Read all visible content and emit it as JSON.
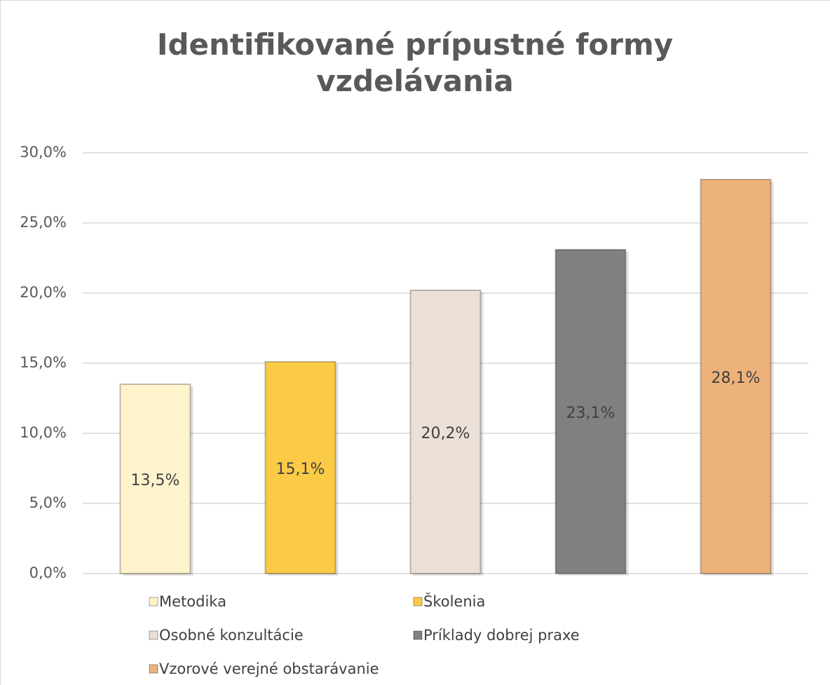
{
  "chart_data": {
    "type": "bar",
    "title": "Identifikované prípustné formy vzdelávania",
    "series": [
      {
        "name": "Metodika",
        "color": "#FFF3CC",
        "values": [
          13.5
        ],
        "value_labels": [
          "13,5%"
        ]
      },
      {
        "name": "Školenia",
        "color": "#FBCB47",
        "values": [
          15.1
        ],
        "value_labels": [
          "15,1%"
        ]
      },
      {
        "name": "Osobné konzultácie",
        "color": "#EBE0D7",
        "values": [
          20.2
        ],
        "value_labels": [
          "20,2%"
        ]
      },
      {
        "name": "Príklady dobrej praxe",
        "color": "#808080",
        "values": [
          23.1
        ],
        "value_labels": [
          "23,1%"
        ]
      },
      {
        "name": "Vzorové verejné obstarávanie",
        "color": "#EDB27A",
        "values": [
          28.1
        ],
        "value_labels": [
          "28,1%"
        ]
      }
    ],
    "ylim": [
      0,
      30
    ],
    "yticks": [
      {
        "value": 0,
        "label": "0,0%"
      },
      {
        "value": 5,
        "label": "5,0%"
      },
      {
        "value": 10,
        "label": "10,0%"
      },
      {
        "value": 15,
        "label": "15,0%"
      },
      {
        "value": 20,
        "label": "20,0%"
      },
      {
        "value": 25,
        "label": "25,0%"
      },
      {
        "value": 30,
        "label": "30,0%"
      }
    ],
    "grid": true,
    "legend": "bottom"
  }
}
